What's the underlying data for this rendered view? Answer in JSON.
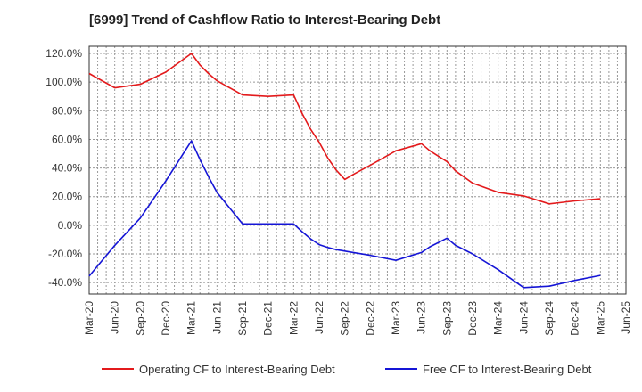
{
  "chart_data": {
    "type": "line",
    "title": "[6999]  Trend of Cashflow Ratio to Interest-Bearing Debt",
    "xlabel": "",
    "ylabel": "",
    "grid": true,
    "legend_position": "bottom",
    "ylim": [
      -48,
      125
    ],
    "y_ticks": [
      -40,
      -20,
      0,
      20,
      40,
      60,
      80,
      100,
      120
    ],
    "y_tick_labels": [
      "-40.0%",
      "-20.0%",
      "0.0%",
      "20.0%",
      "40.0%",
      "60.0%",
      "80.0%",
      "100.0%",
      "120.0%"
    ],
    "x_tick_labels": [
      "Mar-20",
      "Jun-20",
      "Sep-20",
      "Dec-20",
      "Mar-21",
      "Jun-21",
      "Sep-21",
      "Dec-21",
      "Mar-22",
      "Jun-22",
      "Sep-22",
      "Dec-22",
      "Mar-23",
      "Jun-23",
      "Sep-23",
      "Dec-23",
      "Mar-24",
      "Jun-24",
      "Sep-24",
      "Dec-24",
      "Mar-25",
      "Jun-25"
    ],
    "x": [
      "Mar-20",
      "Jun-20",
      "Sep-20",
      "Dec-20",
      "Mar-21",
      "Apr-21",
      "May-21",
      "Jun-21",
      "Sep-21",
      "Dec-21",
      "Mar-22",
      "Apr-22",
      "May-22",
      "Jun-22",
      "Jul-22",
      "Aug-22",
      "Sep-22",
      "Oct-22",
      "Dec-22",
      "Mar-23",
      "Jun-23",
      "Jul-23",
      "Sep-23",
      "Oct-23",
      "Dec-23",
      "Mar-24",
      "Jun-24",
      "Sep-24",
      "Dec-24",
      "Mar-25"
    ],
    "series": [
      {
        "name": "Operating CF to Interest-Bearing Debt",
        "color": "#e31a1c",
        "values": [
          106,
          96,
          98.5,
          107,
          120,
          112,
          106,
          101,
          91,
          90,
          91,
          78,
          67,
          58,
          47,
          38.5,
          32,
          35.5,
          42,
          52,
          57,
          52,
          44.5,
          38,
          29.5,
          23,
          20.5,
          15,
          17,
          18.5
        ]
      },
      {
        "name": "Free CF to Interest-Bearing Debt",
        "color": "#1515d6",
        "values": [
          -35.5,
          -14,
          5,
          31,
          59,
          46,
          34,
          23,
          1,
          1,
          1,
          -4.5,
          -9.5,
          -13.5,
          -15.5,
          -17,
          -18,
          -19,
          -21,
          -24.5,
          -19,
          -15,
          -9,
          -14,
          -20,
          -31,
          -43.5,
          -42.5,
          -38.5,
          -35
        ]
      }
    ]
  }
}
